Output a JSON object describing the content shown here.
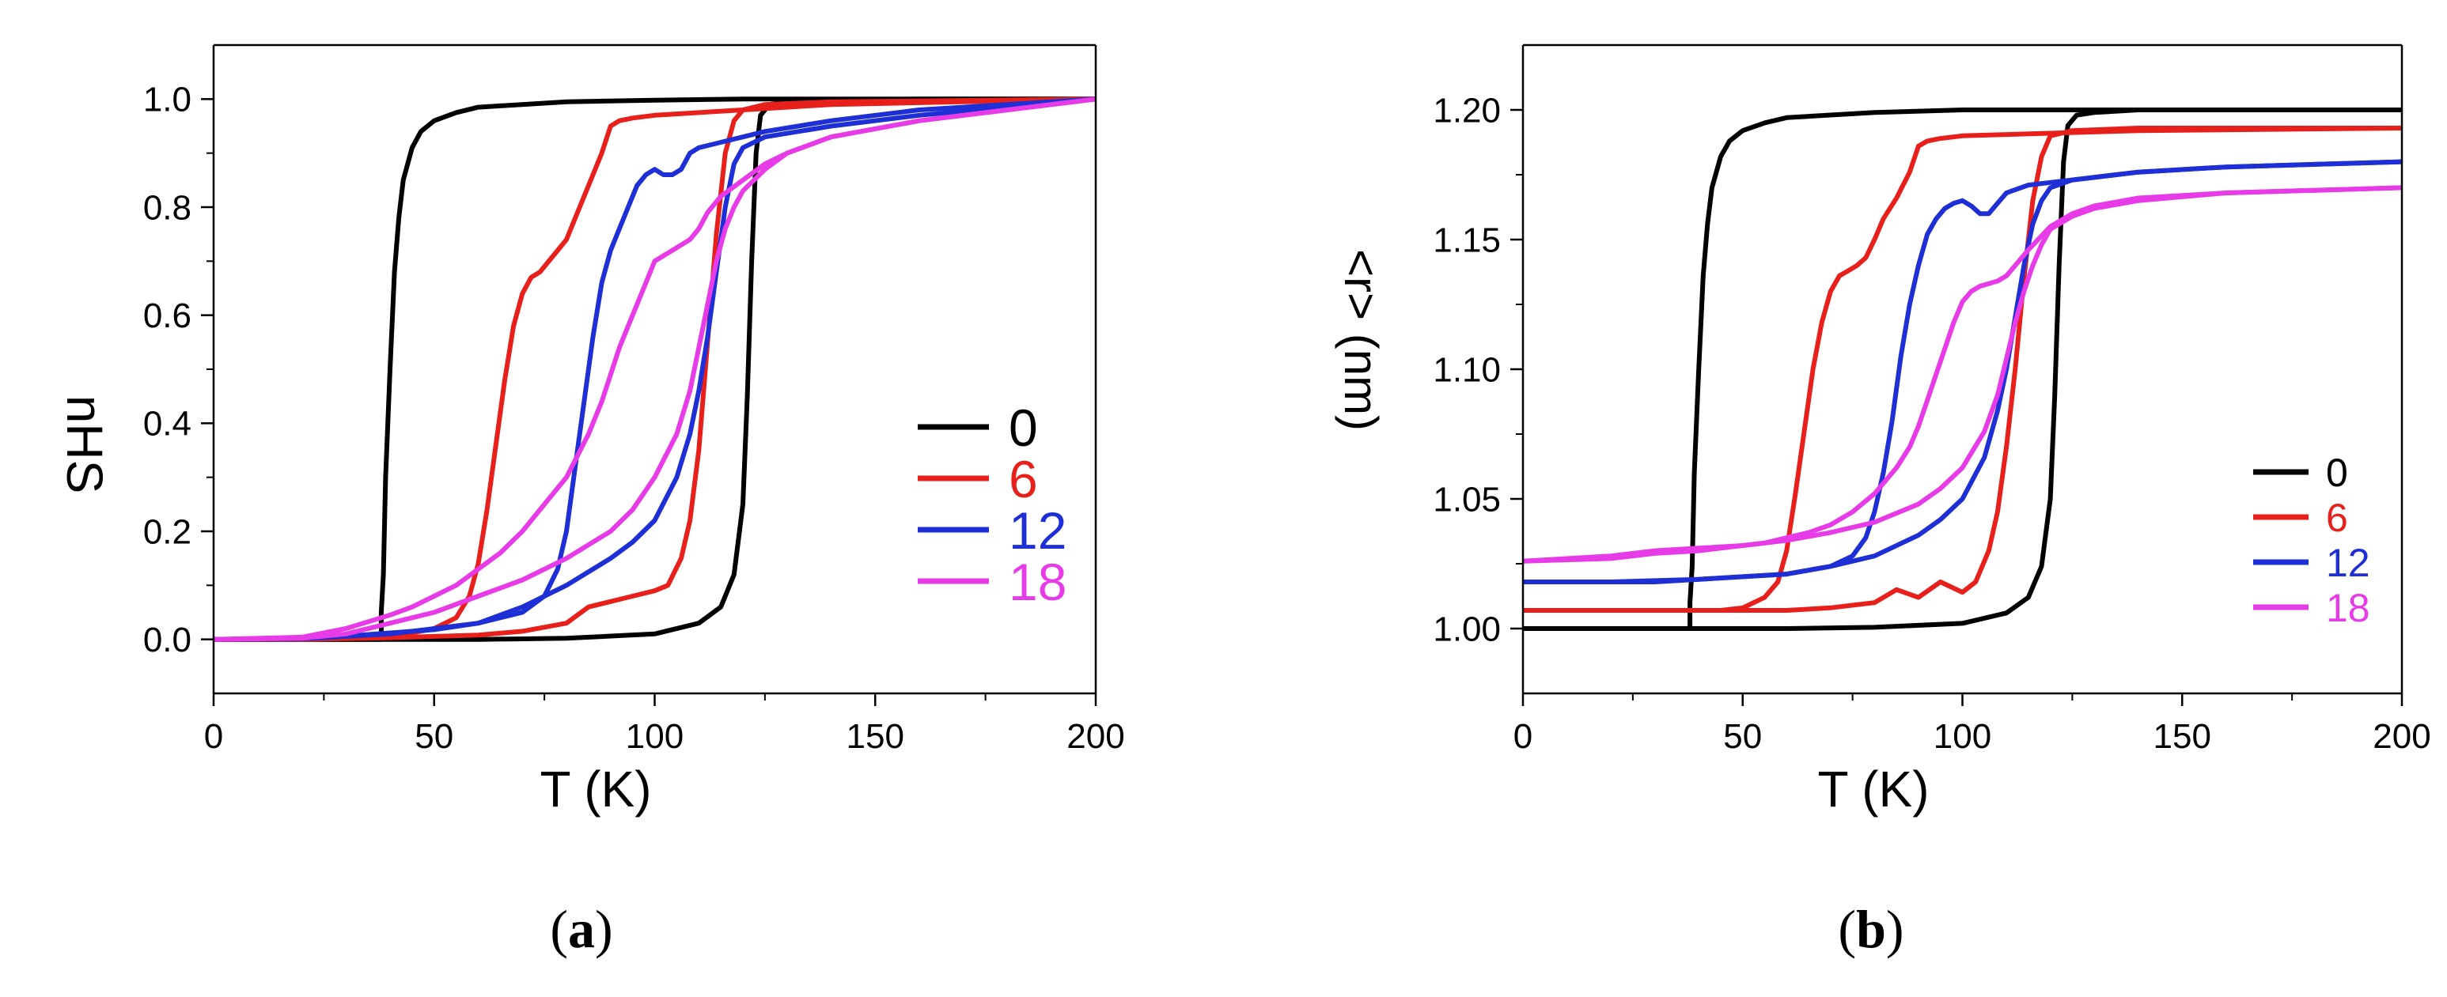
{
  "figure": {
    "panels": [
      {
        "caption_open": "(",
        "caption_letter": "a",
        "caption_close": ")"
      },
      {
        "caption_open": "(",
        "caption_letter": "b",
        "caption_close": ")"
      }
    ]
  },
  "chart_data": [
    {
      "type": "line",
      "panel": "a",
      "title": "",
      "xlabel": "T (K)",
      "ylabel": "nHS",
      "xlim": [
        0,
        200
      ],
      "ylim": [
        -0.1,
        1.1
      ],
      "xticks": [
        0,
        50,
        100,
        150,
        200
      ],
      "xtick_labels": [
        "0",
        "50",
        "100",
        "150",
        "200"
      ],
      "yticks": [
        0.0,
        0.2,
        0.4,
        0.6,
        0.8,
        1.0
      ],
      "ytick_labels": [
        "0.0",
        "0.2",
        "0.4",
        "0.6",
        "0.8",
        "1.0"
      ],
      "grid": false,
      "legend_position": "bottom-right",
      "series": [
        {
          "name": "0",
          "color": "#000000",
          "heating": {
            "x": [
              0,
              20,
              40,
              60,
              80,
              100,
              110,
              115,
              118,
              120,
              121,
              122,
              123,
              124,
              126,
              130,
              140,
              160,
              200
            ],
            "y": [
              0,
              0,
              0,
              0,
              0.002,
              0.01,
              0.03,
              0.06,
              0.12,
              0.25,
              0.45,
              0.7,
              0.9,
              0.97,
              0.99,
              0.995,
              0.998,
              1.0,
              1.0
            ]
          },
          "cooling": {
            "x": [
              200,
              160,
              120,
              100,
              80,
              60,
              55,
              50,
              47,
              45,
              43,
              42,
              41,
              40,
              39,
              38.5,
              38,
              38,
              30,
              20,
              0
            ],
            "y": [
              1.0,
              1.0,
              1.0,
              0.998,
              0.995,
              0.985,
              0.975,
              0.96,
              0.94,
              0.91,
              0.85,
              0.78,
              0.68,
              0.5,
              0.3,
              0.12,
              0.05,
              0.0,
              0.0,
              0.0,
              0.0
            ]
          }
        },
        {
          "name": "6",
          "color": "#e8201c",
          "heating": {
            "x": [
              0,
              20,
              40,
              60,
              70,
              80,
              85,
              90,
              95,
              100,
              103,
              106,
              108,
              110,
              112,
              114,
              116,
              118,
              120,
              125,
              140,
              200
            ],
            "y": [
              0,
              0,
              0.003,
              0.008,
              0.015,
              0.03,
              0.06,
              0.07,
              0.08,
              0.09,
              0.1,
              0.15,
              0.22,
              0.35,
              0.55,
              0.75,
              0.9,
              0.96,
              0.98,
              0.99,
              0.995,
              1.0
            ]
          },
          "cooling": {
            "x": [
              200,
              140,
              120,
              100,
              95,
              92,
              90,
              88,
              85,
              82,
              80,
              78,
              76,
              74,
              72,
              70,
              68,
              66,
              64,
              62,
              60,
              58,
              55,
              50,
              45,
              40,
              30,
              20,
              0
            ],
            "y": [
              1.0,
              0.99,
              0.98,
              0.97,
              0.965,
              0.96,
              0.95,
              0.9,
              0.84,
              0.78,
              0.74,
              0.72,
              0.7,
              0.68,
              0.67,
              0.64,
              0.58,
              0.48,
              0.36,
              0.24,
              0.14,
              0.08,
              0.04,
              0.02,
              0.012,
              0.008,
              0.004,
              0.002,
              0
            ]
          }
        },
        {
          "name": "12",
          "color": "#1f2fd6",
          "heating": {
            "x": [
              0,
              20,
              40,
              60,
              70,
              80,
              90,
              95,
              100,
              105,
              108,
              110,
              112,
              114,
              116,
              118,
              120,
              125,
              140,
              160,
              200
            ],
            "y": [
              0,
              0.001,
              0.01,
              0.03,
              0.06,
              0.1,
              0.15,
              0.18,
              0.22,
              0.3,
              0.38,
              0.46,
              0.56,
              0.68,
              0.8,
              0.88,
              0.91,
              0.93,
              0.95,
              0.97,
              1.0
            ]
          },
          "cooling": {
            "x": [
              200,
              160,
              140,
              125,
              120,
              115,
              110,
              108,
              106,
              104,
              102,
              100,
              98,
              96,
              94,
              92,
              90,
              88,
              86,
              84,
              82,
              80,
              78,
              75,
              70,
              60,
              50,
              40,
              30,
              20,
              0
            ],
            "y": [
              1.0,
              0.98,
              0.96,
              0.94,
              0.93,
              0.92,
              0.91,
              0.9,
              0.87,
              0.86,
              0.86,
              0.87,
              0.86,
              0.84,
              0.8,
              0.76,
              0.72,
              0.66,
              0.56,
              0.44,
              0.32,
              0.2,
              0.13,
              0.08,
              0.05,
              0.03,
              0.018,
              0.012,
              0.006,
              0.002,
              0
            ]
          }
        },
        {
          "name": "18",
          "color": "#e83be8",
          "heating": {
            "x": [
              0,
              20,
              30,
              40,
              50,
              60,
              70,
              80,
              90,
              95,
              100,
              105,
              108,
              110,
              112,
              114,
              116,
              118,
              120,
              125,
              130,
              140,
              160,
              180,
              200
            ],
            "y": [
              0,
              0.002,
              0.01,
              0.03,
              0.05,
              0.08,
              0.11,
              0.15,
              0.2,
              0.24,
              0.3,
              0.38,
              0.46,
              0.54,
              0.62,
              0.7,
              0.76,
              0.8,
              0.83,
              0.87,
              0.9,
              0.93,
              0.96,
              0.98,
              1.0
            ]
          },
          "cooling": {
            "x": [
              200,
              180,
              160,
              140,
              130,
              125,
              120,
              115,
              112,
              110,
              108,
              106,
              104,
              102,
              100,
              98,
              96,
              94,
              92,
              90,
              88,
              85,
              80,
              75,
              70,
              65,
              60,
              55,
              50,
              45,
              40,
              30,
              20,
              0
            ],
            "y": [
              1.0,
              0.98,
              0.96,
              0.93,
              0.9,
              0.88,
              0.85,
              0.82,
              0.79,
              0.76,
              0.74,
              0.73,
              0.72,
              0.71,
              0.7,
              0.66,
              0.62,
              0.58,
              0.54,
              0.49,
              0.44,
              0.38,
              0.3,
              0.25,
              0.2,
              0.16,
              0.13,
              0.1,
              0.08,
              0.06,
              0.045,
              0.02,
              0.004,
              0
            ]
          }
        }
      ]
    },
    {
      "type": "line",
      "panel": "b",
      "title": "",
      "xlabel": "T (K)",
      "ylabel": "<r> (nm)",
      "xlim": [
        0,
        200
      ],
      "ylim": [
        0.975,
        1.225
      ],
      "xticks": [
        0,
        50,
        100,
        150,
        200
      ],
      "xtick_labels": [
        "0",
        "50",
        "100",
        "150",
        "200"
      ],
      "yticks": [
        1.0,
        1.05,
        1.1,
        1.15,
        1.2
      ],
      "ytick_labels": [
        "1.00",
        "1.05",
        "1.10",
        "1.15",
        "1.20"
      ],
      "grid": false,
      "legend_position": "bottom-right",
      "series": [
        {
          "name": "0",
          "color": "#000000",
          "heating": {
            "x": [
              0,
              20,
              40,
              60,
              80,
              100,
              110,
              115,
              118,
              120,
              121,
              122,
              123,
              124,
              126,
              130,
              140,
              160,
              200
            ],
            "y": [
              1.0,
              1.0,
              1.0,
              1.0,
              1.0005,
              1.002,
              1.006,
              1.012,
              1.024,
              1.05,
              1.09,
              1.14,
              1.18,
              1.194,
              1.198,
              1.199,
              1.2,
              1.2,
              1.2
            ]
          },
          "cooling": {
            "x": [
              200,
              160,
              120,
              100,
              80,
              60,
              55,
              50,
              47,
              45,
              43,
              42,
              41,
              40,
              39,
              38.5,
              38,
              38,
              30,
              20,
              0
            ],
            "y": [
              1.2,
              1.2,
              1.2,
              1.2,
              1.199,
              1.197,
              1.195,
              1.192,
              1.188,
              1.182,
              1.17,
              1.156,
              1.136,
              1.1,
              1.06,
              1.024,
              1.01,
              1.0,
              1.0,
              1.0,
              1.0
            ]
          }
        },
        {
          "name": "6",
          "color": "#e8201c",
          "heating": {
            "x": [
              0,
              20,
              40,
              60,
              70,
              80,
              85,
              90,
              95,
              100,
              103,
              106,
              108,
              110,
              112,
              114,
              116,
              118,
              120,
              125,
              140,
              200
            ],
            "y": [
              1.007,
              1.007,
              1.007,
              1.007,
              1.008,
              1.01,
              1.015,
              1.012,
              1.018,
              1.014,
              1.018,
              1.03,
              1.045,
              1.07,
              1.1,
              1.135,
              1.165,
              1.182,
              1.19,
              1.192,
              1.193,
              1.193
            ]
          },
          "cooling": {
            "x": [
              200,
              140,
              120,
              100,
              95,
              92,
              90,
              88,
              85,
              82,
              80,
              78,
              76,
              74,
              72,
              70,
              68,
              66,
              64,
              62,
              60,
              58,
              55,
              50,
              45,
              40,
              30,
              20,
              0
            ],
            "y": [
              1.193,
              1.192,
              1.191,
              1.19,
              1.189,
              1.188,
              1.186,
              1.176,
              1.166,
              1.158,
              1.15,
              1.143,
              1.14,
              1.138,
              1.136,
              1.13,
              1.118,
              1.1,
              1.076,
              1.052,
              1.03,
              1.018,
              1.012,
              1.008,
              1.007,
              1.007,
              1.007,
              1.007,
              1.007
            ]
          }
        },
        {
          "name": "12",
          "color": "#1f2fd6",
          "heating": {
            "x": [
              0,
              20,
              40,
              60,
              70,
              80,
              90,
              95,
              100,
              105,
              108,
              110,
              112,
              114,
              116,
              118,
              120,
              125,
              140,
              160,
              200
            ],
            "y": [
              1.018,
              1.018,
              1.019,
              1.021,
              1.024,
              1.028,
              1.036,
              1.042,
              1.05,
              1.066,
              1.084,
              1.1,
              1.12,
              1.14,
              1.156,
              1.165,
              1.17,
              1.173,
              1.176,
              1.178,
              1.18
            ]
          },
          "cooling": {
            "x": [
              200,
              160,
              140,
              125,
              120,
              115,
              110,
              108,
              106,
              104,
              102,
              100,
              98,
              96,
              94,
              92,
              90,
              88,
              86,
              84,
              82,
              80,
              78,
              75,
              70,
              60,
              50,
              40,
              30,
              20,
              0
            ],
            "y": [
              1.18,
              1.178,
              1.176,
              1.173,
              1.172,
              1.171,
              1.168,
              1.164,
              1.16,
              1.16,
              1.163,
              1.165,
              1.164,
              1.162,
              1.158,
              1.152,
              1.14,
              1.125,
              1.105,
              1.08,
              1.06,
              1.045,
              1.035,
              1.028,
              1.024,
              1.021,
              1.02,
              1.019,
              1.018,
              1.018,
              1.018
            ]
          }
        },
        {
          "name": "18",
          "color": "#e83be8",
          "heating": {
            "x": [
              0,
              20,
              30,
              40,
              50,
              60,
              70,
              80,
              90,
              95,
              100,
              105,
              108,
              110,
              112,
              114,
              116,
              118,
              120,
              125,
              130,
              140,
              160,
              180,
              200
            ],
            "y": [
              1.026,
              1.028,
              1.03,
              1.031,
              1.032,
              1.034,
              1.037,
              1.041,
              1.048,
              1.054,
              1.062,
              1.076,
              1.09,
              1.104,
              1.118,
              1.13,
              1.14,
              1.148,
              1.154,
              1.159,
              1.162,
              1.165,
              1.168,
              1.169,
              1.17
            ]
          },
          "cooling": {
            "x": [
              200,
              180,
              160,
              140,
              130,
              125,
              120,
              115,
              112,
              110,
              108,
              106,
              104,
              102,
              100,
              98,
              96,
              94,
              92,
              90,
              88,
              85,
              80,
              75,
              70,
              65,
              60,
              55,
              50,
              45,
              40,
              30,
              20,
              0
            ],
            "y": [
              1.17,
              1.169,
              1.168,
              1.166,
              1.163,
              1.16,
              1.155,
              1.146,
              1.14,
              1.136,
              1.134,
              1.133,
              1.132,
              1.13,
              1.126,
              1.118,
              1.108,
              1.098,
              1.088,
              1.078,
              1.07,
              1.062,
              1.052,
              1.045,
              1.04,
              1.037,
              1.035,
              1.033,
              1.032,
              1.031,
              1.03,
              1.029,
              1.027,
              1.026
            ]
          }
        }
      ]
    }
  ]
}
